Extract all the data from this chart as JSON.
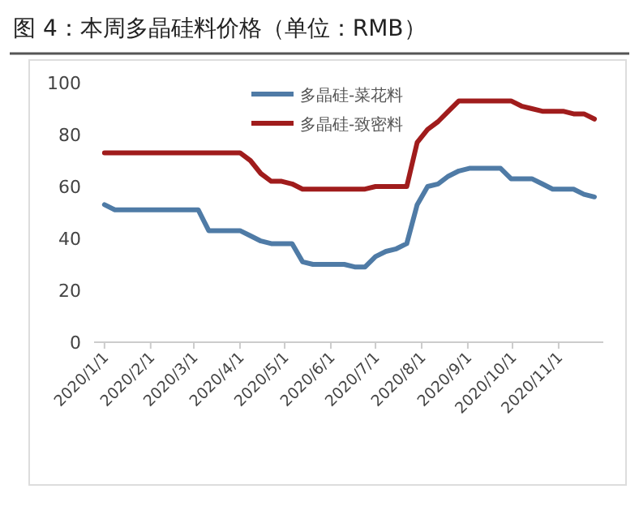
{
  "chart_data": {
    "type": "line",
    "title": "图 4：本周多晶硅料价格（单位：RMB）",
    "x": [
      "2020-01-01",
      "2020-01-08",
      "2020-01-15",
      "2020-01-22",
      "2020-01-29",
      "2020-02-05",
      "2020-02-12",
      "2020-02-19",
      "2020-02-26",
      "2020-03-04",
      "2020-03-11",
      "2020-03-18",
      "2020-03-25",
      "2020-04-01",
      "2020-04-08",
      "2020-04-15",
      "2020-04-22",
      "2020-04-29",
      "2020-05-06",
      "2020-05-13",
      "2020-05-20",
      "2020-05-27",
      "2020-06-03",
      "2020-06-10",
      "2020-06-17",
      "2020-06-24",
      "2020-07-01",
      "2020-07-08",
      "2020-07-15",
      "2020-07-22",
      "2020-07-29",
      "2020-08-05",
      "2020-08-12",
      "2020-08-19",
      "2020-08-26",
      "2020-09-02",
      "2020-09-09",
      "2020-09-16",
      "2020-09-23",
      "2020-09-30",
      "2020-10-07",
      "2020-10-14",
      "2020-10-21",
      "2020-10-28",
      "2020-11-04",
      "2020-11-11",
      "2020-11-18",
      "2020-11-25"
    ],
    "series": [
      {
        "name": "多晶硅-菜花料",
        "color": "#4f7ba6",
        "values": [
          53,
          51,
          51,
          51,
          51,
          51,
          51,
          51,
          51,
          51,
          43,
          43,
          43,
          43,
          41,
          39,
          38,
          38,
          38,
          31,
          30,
          30,
          30,
          30,
          29,
          29,
          33,
          35,
          36,
          38,
          53,
          60,
          61,
          64,
          66,
          67,
          67,
          67,
          67,
          63,
          63,
          63,
          61,
          59,
          59,
          59,
          57,
          56
        ]
      },
      {
        "name": "多晶硅-致密料",
        "color": "#a01c1c",
        "values": [
          73,
          73,
          73,
          73,
          73,
          73,
          73,
          73,
          73,
          73,
          73,
          73,
          73,
          73,
          70,
          65,
          62,
          62,
          61,
          59,
          59,
          59,
          59,
          59,
          59,
          59,
          60,
          60,
          60,
          60,
          77,
          82,
          85,
          89,
          93,
          93,
          93,
          93,
          93,
          93,
          91,
          90,
          89,
          89,
          89,
          88,
          88,
          86
        ]
      }
    ],
    "xlim": [
      "2019-12-25",
      "2020-12-01"
    ],
    "xticks": [
      {
        "value": "2020-01-01",
        "label": "2020/1/1"
      },
      {
        "value": "2020-02-01",
        "label": "2020/2/1"
      },
      {
        "value": "2020-03-01",
        "label": "2020/3/1"
      },
      {
        "value": "2020-04-01",
        "label": "2020/4/1"
      },
      {
        "value": "2020-05-01",
        "label": "2020/5/1"
      },
      {
        "value": "2020-06-01",
        "label": "2020/6/1"
      },
      {
        "value": "2020-07-01",
        "label": "2020/7/1"
      },
      {
        "value": "2020-08-01",
        "label": "2020/8/1"
      },
      {
        "value": "2020-09-01",
        "label": "2020/9/1"
      },
      {
        "value": "2020-10-01",
        "label": "2020/10/1"
      },
      {
        "value": "2020-11-01",
        "label": "2020/11/1"
      }
    ],
    "ylim": [
      0,
      100
    ],
    "yticks": [
      0,
      20,
      40,
      60,
      80,
      100
    ],
    "legend": "top",
    "grid": false,
    "marker": "none",
    "line_style": "solid"
  }
}
